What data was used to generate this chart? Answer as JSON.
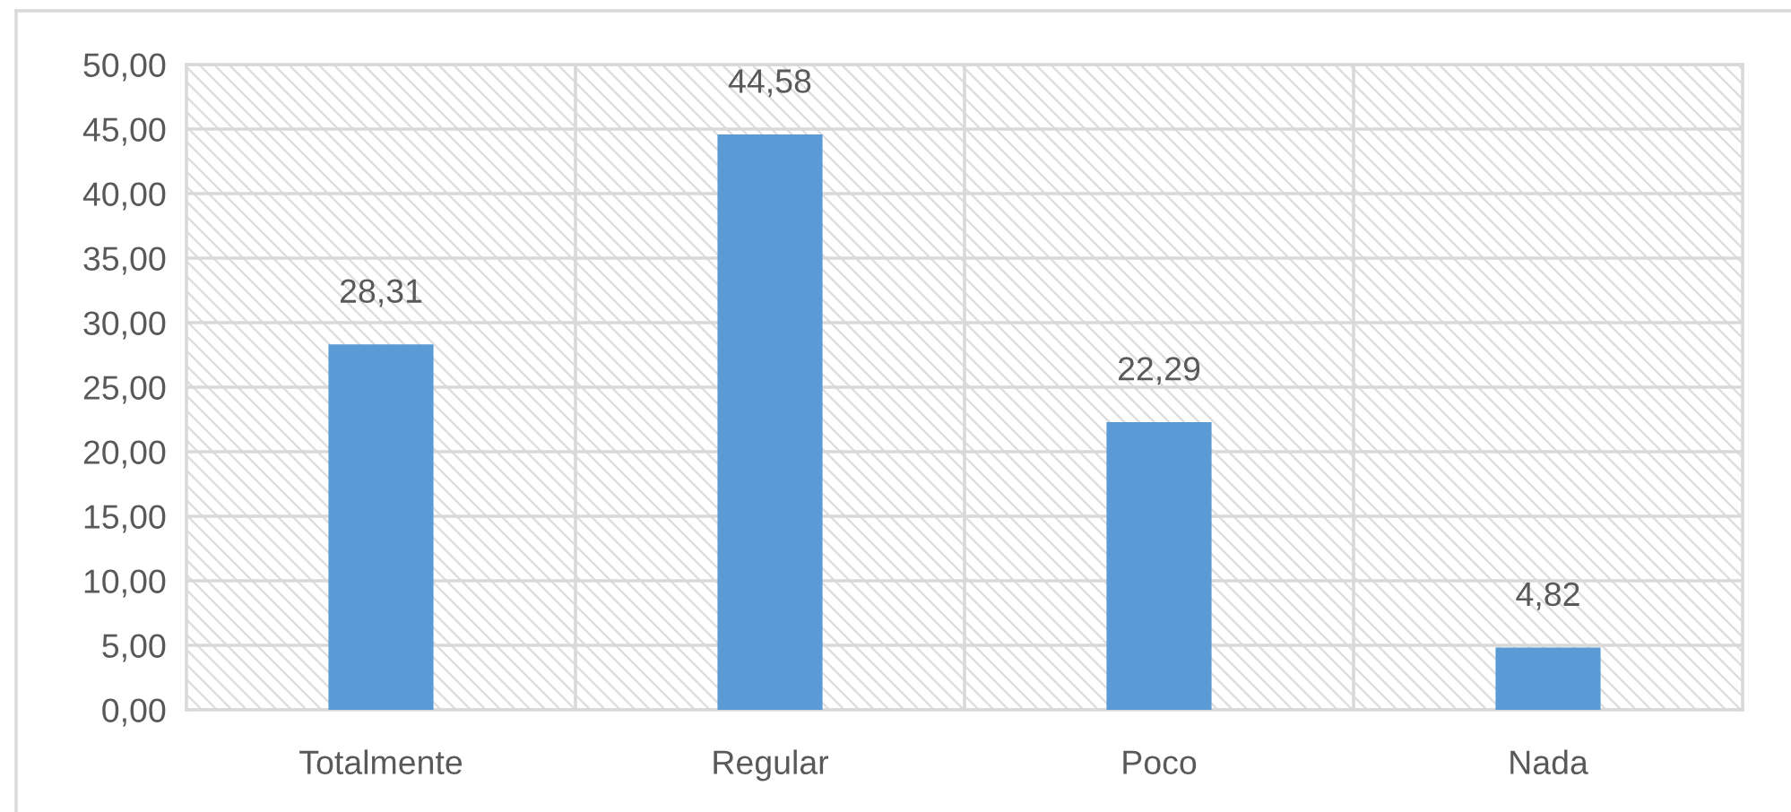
{
  "chart_data": {
    "type": "bar",
    "categories": [
      "Totalmente",
      "Regular",
      "Poco",
      "Nada"
    ],
    "values": [
      28.31,
      44.58,
      22.29,
      4.82
    ],
    "color": "#5b9bd5",
    "value_labels": [
      "28,31",
      "44,58",
      "22,29",
      "4,82"
    ],
    "ylim": [
      0,
      50
    ],
    "yticks": [
      {
        "value": 0,
        "label": "0,00"
      },
      {
        "value": 5,
        "label": "5,00"
      },
      {
        "value": 10,
        "label": "10,00"
      },
      {
        "value": 15,
        "label": "15,00"
      },
      {
        "value": 20,
        "label": "20,00"
      },
      {
        "value": 25,
        "label": "25,00"
      },
      {
        "value": 30,
        "label": "30,00"
      },
      {
        "value": 35,
        "label": "35,00"
      },
      {
        "value": 40,
        "label": "40,00"
      },
      {
        "value": 45,
        "label": "45,00"
      },
      {
        "value": 50,
        "label": "50,00"
      }
    ],
    "grid": true
  }
}
